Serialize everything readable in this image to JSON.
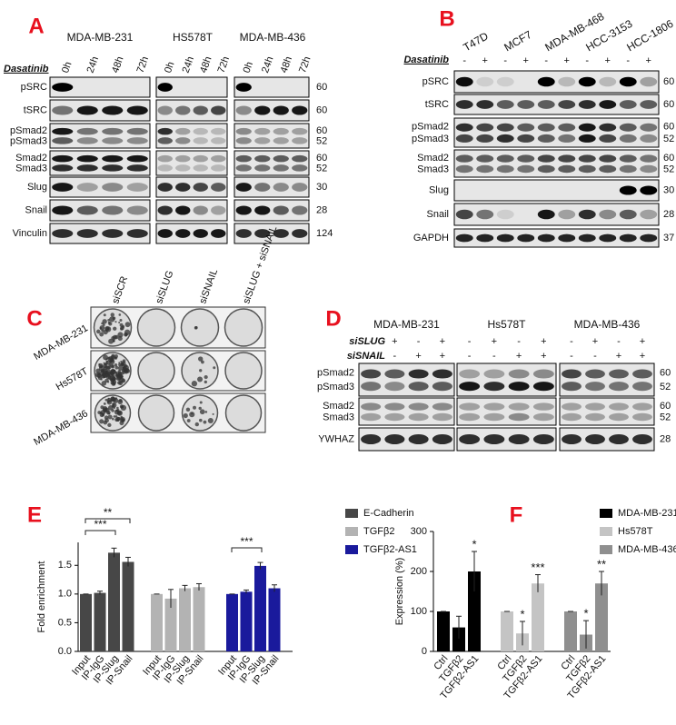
{
  "panels": {
    "A": {
      "label": "A",
      "treatment": "Dasatinib",
      "cell_lines": [
        "MDA-MB-231",
        "HS578T",
        "MDA-MB-436"
      ],
      "timepoints": [
        "0h",
        "24h",
        "48h",
        "72h"
      ],
      "rows": [
        {
          "names": [
            "pSRC"
          ],
          "mw": [
            60
          ]
        },
        {
          "names": [
            "tSRC"
          ],
          "mw": [
            60
          ]
        },
        {
          "names": [
            "pSmad2",
            "pSmad3"
          ],
          "mw": [
            60,
            52
          ]
        },
        {
          "names": [
            "Smad2",
            "Smad3"
          ],
          "mw": [
            60,
            52
          ]
        },
        {
          "names": [
            "Slug"
          ],
          "mw": [
            30
          ]
        },
        {
          "names": [
            "Snail"
          ],
          "mw": [
            28
          ]
        },
        {
          "names": [
            "Vinculin"
          ],
          "mw": [
            124
          ]
        }
      ]
    },
    "B": {
      "label": "B",
      "treatment": "Dasatinib",
      "cell_lines": [
        "T47D",
        "MCF7",
        "MDA-MB-468",
        "HCC-3153",
        "HCC-1806"
      ],
      "signs": [
        "-",
        "+",
        "-",
        "+",
        "-",
        "+",
        "-",
        "+",
        "-",
        "+"
      ],
      "rows": [
        {
          "names": [
            "pSRC"
          ],
          "mw": [
            60
          ]
        },
        {
          "names": [
            "tSRC"
          ],
          "mw": [
            60
          ]
        },
        {
          "names": [
            "pSmad2",
            "pSmad3"
          ],
          "mw": [
            60,
            52
          ]
        },
        {
          "names": [
            "Smad2",
            "Smad3"
          ],
          "mw": [
            60,
            52
          ]
        },
        {
          "names": [
            "Slug"
          ],
          "mw": [
            30
          ]
        },
        {
          "names": [
            "Snail"
          ],
          "mw": [
            28
          ]
        },
        {
          "names": [
            "GAPDH"
          ],
          "mw": [
            37
          ]
        }
      ]
    },
    "C": {
      "label": "C",
      "conditions": [
        "siSCR",
        "siSLUG",
        "siSNAIL",
        "siSLUG + siSNAIL"
      ],
      "cell_lines": [
        "MDA-MB-231",
        "Hs578T",
        "MDA-MB-436"
      ]
    },
    "D": {
      "label": "D",
      "cell_lines": [
        "MDA-MB-231",
        "Hs578T",
        "MDA-MB-436"
      ],
      "treatments": [
        {
          "name": "siSLUG",
          "signs": [
            "-",
            "+",
            "-",
            "+"
          ]
        },
        {
          "name": "siSNAIL",
          "signs": [
            "-",
            "-",
            "+",
            "+"
          ]
        }
      ],
      "rows": [
        {
          "names": [
            "pSmad2",
            "pSmad3"
          ],
          "mw": [
            60,
            52
          ]
        },
        {
          "names": [
            "Smad2",
            "Smad3"
          ],
          "mw": [
            60,
            52
          ]
        },
        {
          "names": [
            "YWHAZ"
          ],
          "mw": [
            28
          ]
        }
      ]
    }
  },
  "chart_data": [
    {
      "type": "bar",
      "label": "E",
      "ylabel": "Fold enrichment",
      "categories": [
        "Input",
        "IP-IgG",
        "IP-Slug",
        "IP-Snail"
      ],
      "series": [
        {
          "name": "E-Cadherin",
          "color": "#474747",
          "values": [
            1.0,
            1.02,
            1.72,
            1.56
          ],
          "errors": [
            0,
            0.03,
            0.08,
            0.08
          ]
        },
        {
          "name": "TGFβ2",
          "color": "#b3b3b3",
          "values": [
            1.0,
            0.92,
            1.1,
            1.12
          ],
          "errors": [
            0,
            0.16,
            0.05,
            0.06
          ]
        },
        {
          "name": "TGFβ2-AS1",
          "color": "#1a1a9c",
          "values": [
            1.0,
            1.04,
            1.49,
            1.1
          ],
          "errors": [
            0,
            0.03,
            0.06,
            0.06
          ]
        }
      ],
      "ylim": [
        0,
        1.9
      ],
      "yticks": [
        {
          "value": 0,
          "label": "0.0"
        },
        {
          "value": 0.5,
          "label": "0.5"
        },
        {
          "value": 1,
          "label": "1.0"
        },
        {
          "value": 1.5,
          "label": "1.5"
        }
      ],
      "annotations": [
        "***",
        "**",
        "***"
      ]
    },
    {
      "type": "bar",
      "label": "F",
      "ylabel": "Expression (%)",
      "categories": [
        "Ctrl",
        "TGFβ2",
        "TGFβ2-AS1"
      ],
      "series": [
        {
          "name": "MDA-MB-231",
          "color": "#000000",
          "values": [
            100,
            60,
            200
          ],
          "errors": [
            0,
            28,
            50
          ],
          "annotations": [
            null,
            null,
            "*"
          ]
        },
        {
          "name": "Hs578T",
          "color": "#c4c4c4",
          "values": [
            100,
            45,
            170
          ],
          "errors": [
            0,
            30,
            22
          ],
          "annotations": [
            null,
            "*",
            "***"
          ]
        },
        {
          "name": "MDA-MB-436",
          "color": "#8f8f8f",
          "values": [
            100,
            42,
            170
          ],
          "errors": [
            0,
            35,
            30
          ],
          "annotations": [
            null,
            "*",
            "**"
          ]
        }
      ],
      "ylim": [
        0,
        300
      ],
      "yticks": [
        0,
        100,
        200,
        300
      ]
    }
  ]
}
